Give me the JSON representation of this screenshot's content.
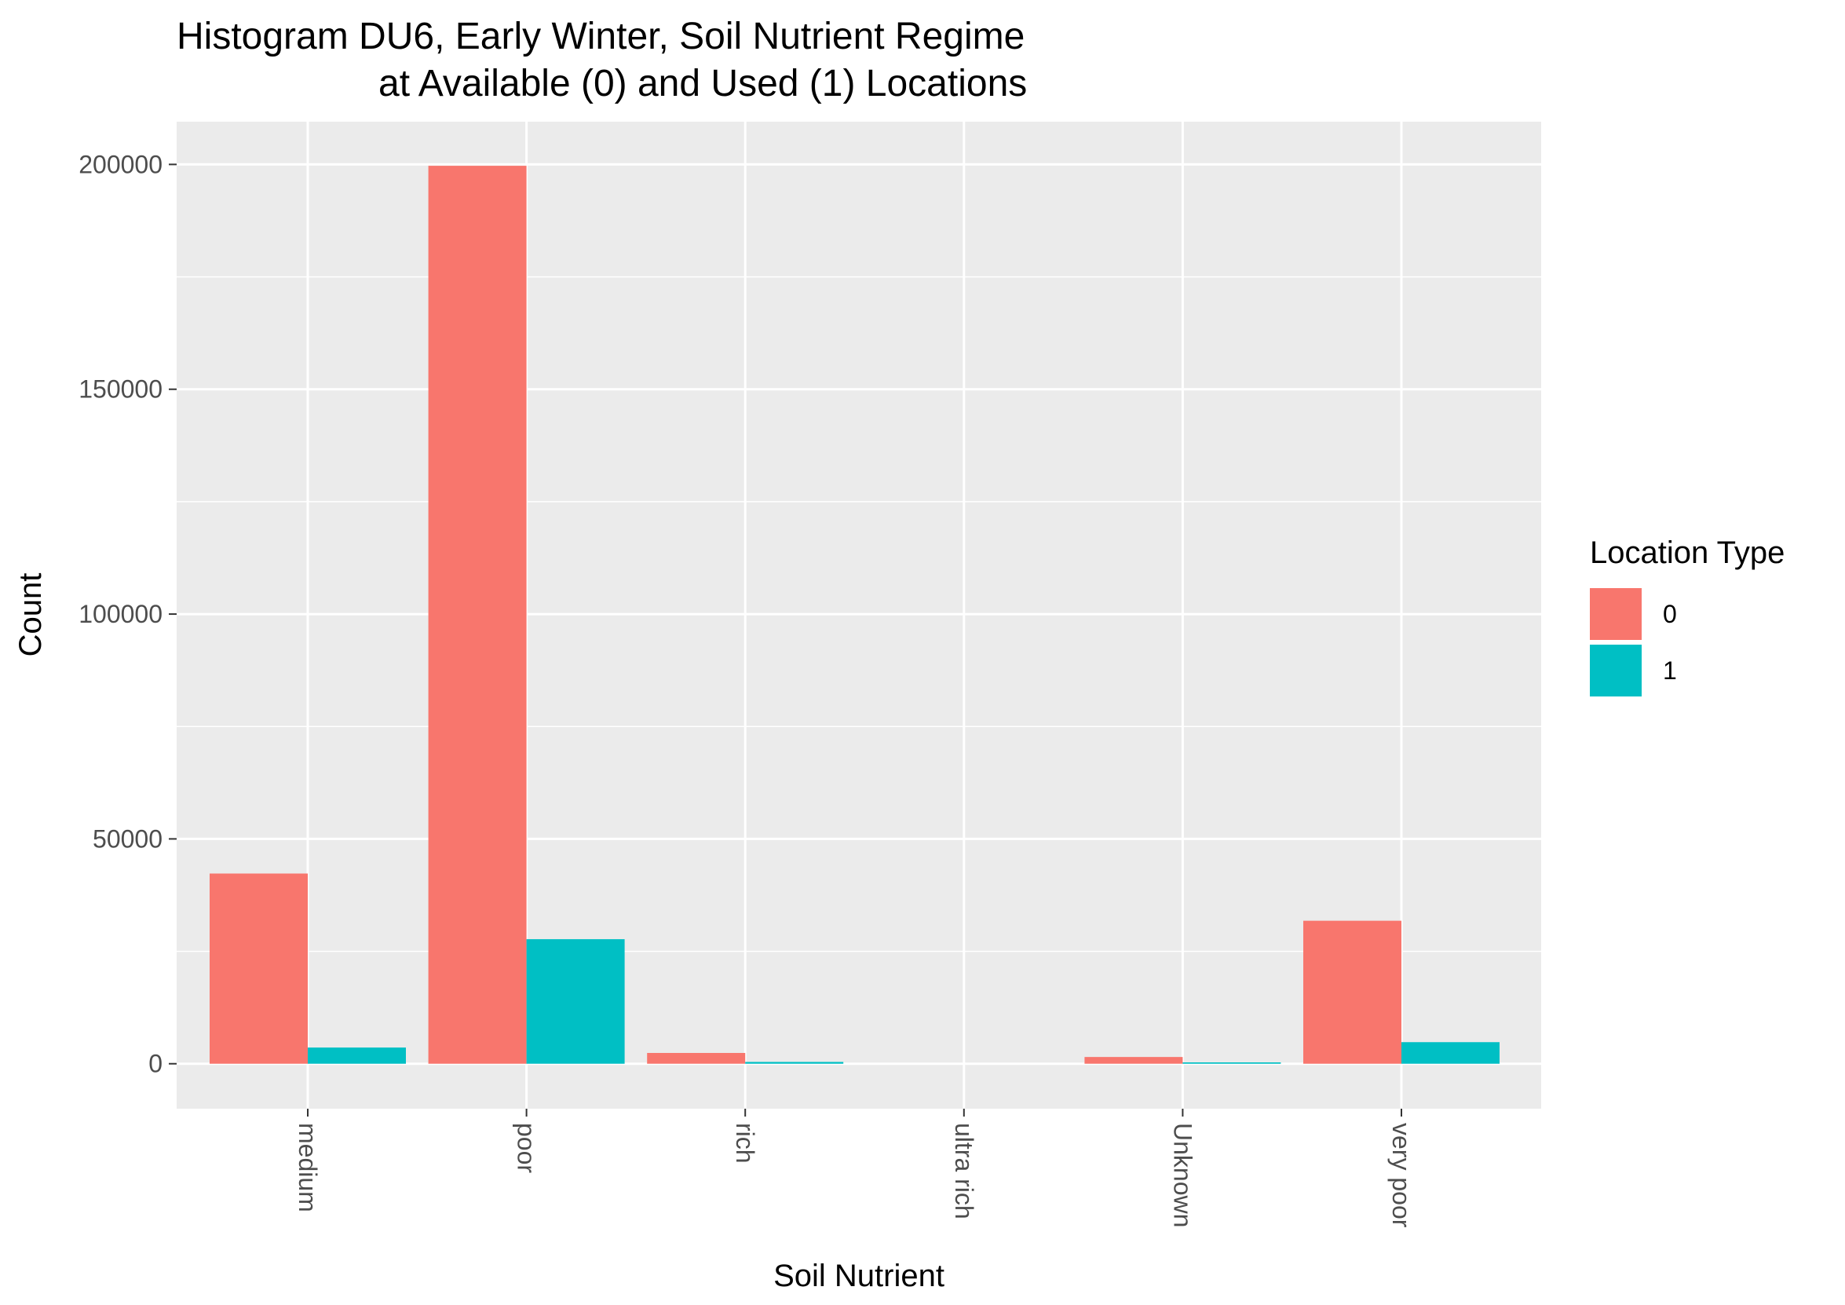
{
  "chart_data": {
    "type": "bar",
    "title_line1": "Histogram DU6, Early Winter, Soil Nutrient Regime",
    "title_line2": "at Available (0) and Used (1) Locations",
    "xlabel": "Soil Nutrient",
    "ylabel": "Count",
    "categories": [
      "medium",
      "poor",
      "rich",
      "ultra rich",
      "Unknown",
      "very poor"
    ],
    "series": [
      {
        "name": "0",
        "color": "#F8766D",
        "values": [
          42300,
          199700,
          2400,
          0,
          1500,
          31800
        ]
      },
      {
        "name": "1",
        "color": "#00BFC4",
        "values": [
          3600,
          27700,
          400,
          0,
          300,
          4800
        ]
      }
    ],
    "yticks": [
      0,
      50000,
      100000,
      150000,
      200000
    ],
    "ylim": [
      -10000,
      209500
    ],
    "legend": {
      "title": "Location Type",
      "placement": "right"
    },
    "grid": true,
    "panel_background": "#EBEBEB",
    "grid_color": "#FFFFFF"
  }
}
